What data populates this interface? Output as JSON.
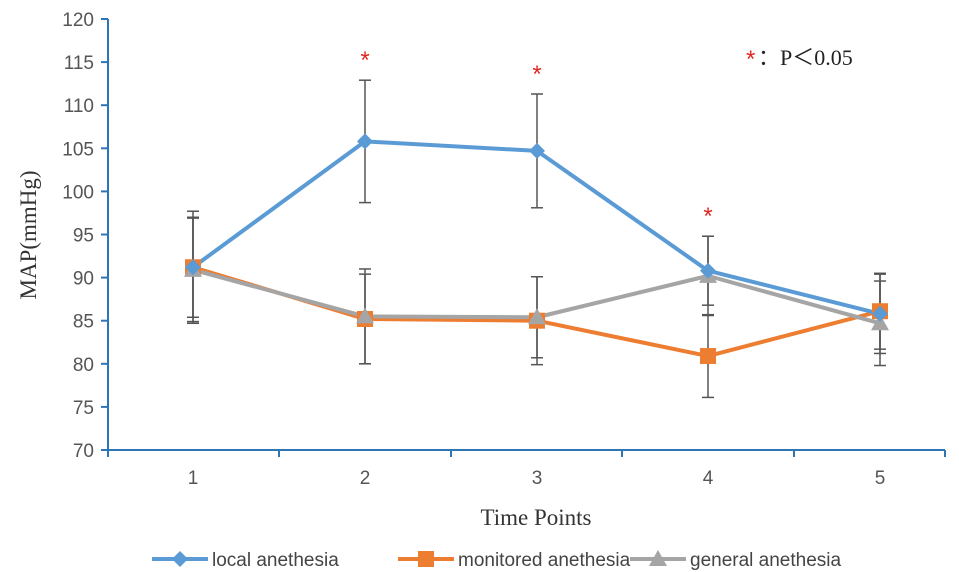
{
  "chart_data": {
    "type": "line",
    "title": "",
    "xlabel": "Time Points",
    "ylabel": "MAP(mmHg)",
    "categories": [
      "1",
      "2",
      "3",
      "4",
      "5"
    ],
    "ylim": [
      70,
      120
    ],
    "yticks": [
      70,
      75,
      80,
      85,
      90,
      95,
      100,
      105,
      110,
      115,
      120
    ],
    "grid": false,
    "legend_position": "bottom",
    "series": [
      {
        "name": "local anethesia",
        "color": "#5b9bd5",
        "marker": "diamond",
        "values": [
          91.2,
          105.8,
          104.7,
          90.8,
          85.8
        ],
        "error": [
          6.5,
          7.1,
          6.6,
          4.0,
          4.6
        ]
      },
      {
        "name": "monitored anethesia",
        "color": "#ed7d31",
        "marker": "square",
        "values": [
          91.2,
          85.2,
          85.0,
          80.9,
          86.1
        ],
        "error": [
          5.8,
          5.2,
          5.1,
          4.8,
          4.4
        ]
      },
      {
        "name": "general anethesia",
        "color": "#a5a5a5",
        "marker": "triangle",
        "values": [
          90.9,
          85.5,
          85.4,
          90.2,
          84.7
        ],
        "error": [
          6.0,
          5.5,
          4.7,
          4.6,
          4.9
        ]
      }
    ],
    "significance": {
      "marker": "*",
      "color": "#e0261f",
      "points": [
        "2",
        "3",
        "4"
      ],
      "note_label": "：P＜0.05"
    }
  }
}
